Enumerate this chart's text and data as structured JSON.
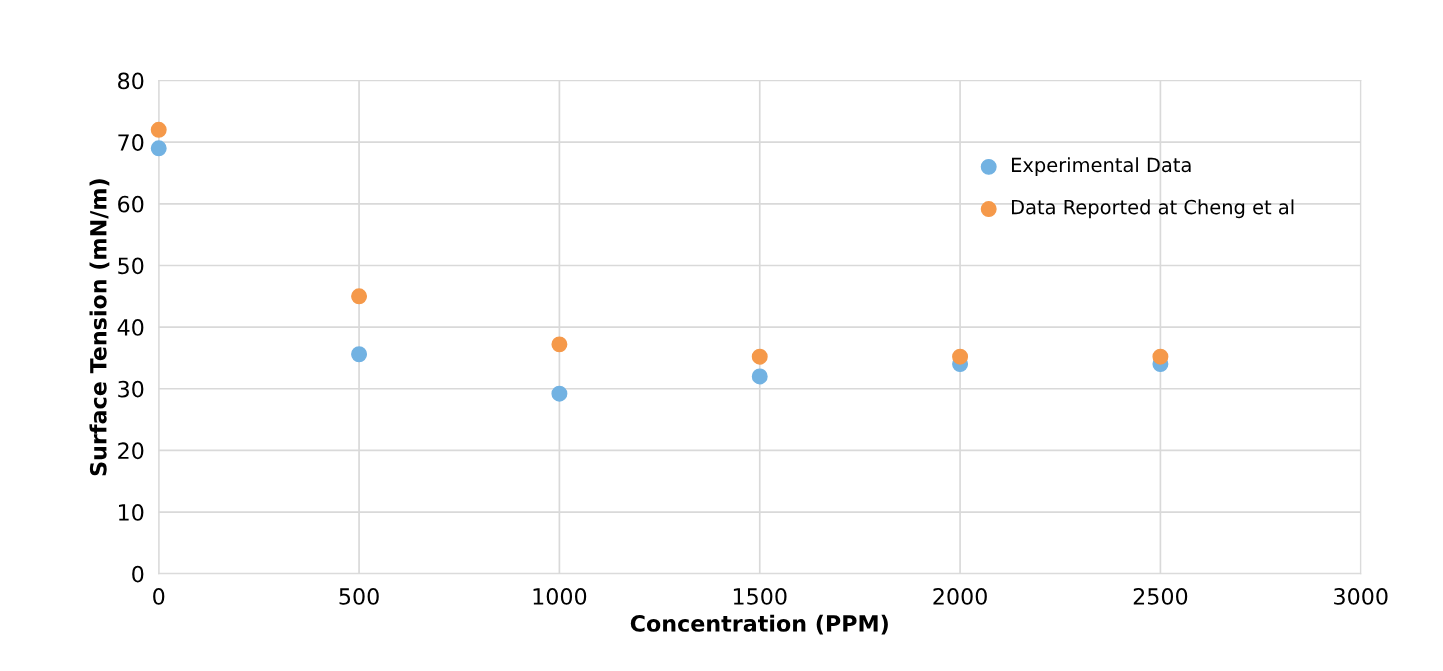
{
  "chart_data": {
    "type": "scatter",
    "xlabel": "Concentration (PPM)",
    "ylabel": "Surface Tension (mN/m)",
    "x": [
      0,
      500,
      1000,
      1500,
      2000,
      2500
    ],
    "series": [
      {
        "name": "Experimental Data",
        "color": "#72b2e2",
        "values": [
          69,
          35.6,
          29.2,
          32,
          34,
          34
        ]
      },
      {
        "name": "Data Reported at Cheng et al",
        "color": "#f5994a",
        "values": [
          72,
          45,
          37.2,
          35.2,
          35.2,
          35.2
        ]
      }
    ],
    "xlim": [
      0,
      3000
    ],
    "xticks": [
      0,
      500,
      1000,
      1500,
      2000,
      2500,
      3000
    ],
    "ylim": [
      0,
      80
    ],
    "yticks": [
      0,
      10,
      20,
      30,
      40,
      50,
      60,
      70,
      80
    ],
    "grid": true,
    "legend": "top right",
    "marker": "circle"
  }
}
